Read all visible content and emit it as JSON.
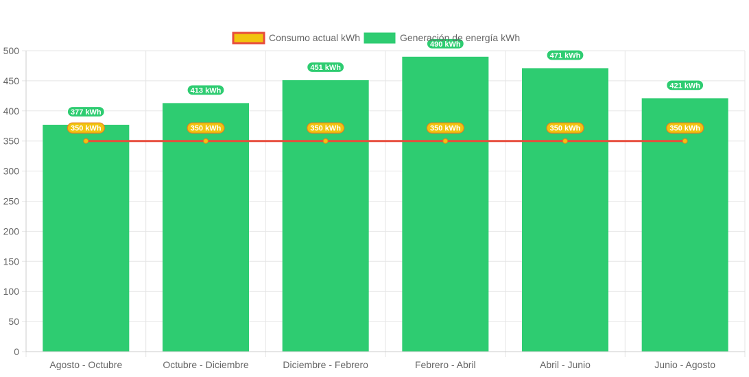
{
  "chart_data": {
    "type": "bar",
    "categories": [
      "Agosto - Octubre",
      "Octubre - Diciembre",
      "Diciembre - Febrero",
      "Febrero - Abril",
      "Abril - Junio",
      "Junio - Agosto"
    ],
    "series": [
      {
        "name": "Consumo actual kWh",
        "type": "line",
        "values": [
          350,
          350,
          350,
          350,
          350,
          350
        ],
        "color": "#e74c3c",
        "fill_color": "#f1c40f",
        "labels": [
          "350 kWh",
          "350 kWh",
          "350 kWh",
          "350 kWh",
          "350 kWh",
          "350 kWh"
        ]
      },
      {
        "name": "Generación de energía kWh",
        "type": "bar",
        "values": [
          377,
          413,
          451,
          490,
          471,
          421
        ],
        "color": "#2ecc71",
        "labels": [
          "377 kWh",
          "413 kWh",
          "451 kWh",
          "490 kWh",
          "471 kWh",
          "421 kWh"
        ]
      }
    ],
    "ylim": [
      0,
      500
    ],
    "yticks": [
      "0",
      "50",
      "100",
      "150",
      "200",
      "250",
      "300",
      "350",
      "400",
      "450",
      "500"
    ],
    "grid": true,
    "legend_position": "top"
  }
}
